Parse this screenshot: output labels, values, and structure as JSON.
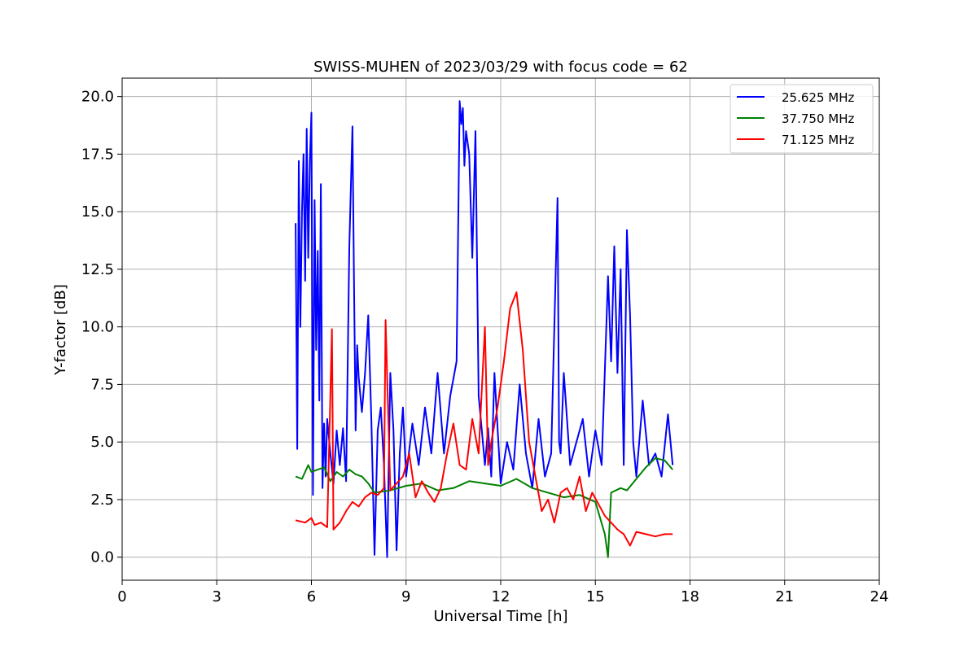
{
  "chart_data": {
    "type": "line",
    "title": "SWISS-MUHEN of 2023/03/29 with focus code = 62",
    "xlabel": "Universal Time [h]",
    "ylabel": "Y-factor [dB]",
    "xlim": [
      0,
      24
    ],
    "ylim": [
      -1,
      20.8
    ],
    "xticks": [
      0,
      3,
      6,
      9,
      12,
      15,
      18,
      21,
      24
    ],
    "xtick_labels": [
      "0",
      "3",
      "6",
      "9",
      "12",
      "15",
      "18",
      "21",
      "24"
    ],
    "yticks": [
      0,
      2.5,
      5,
      7.5,
      10,
      12.5,
      15,
      17.5,
      20
    ],
    "ytick_labels": [
      "0.0",
      "2.5",
      "5.0",
      "7.5",
      "10.0",
      "12.5",
      "15.0",
      "17.5",
      "20.0"
    ],
    "grid": true,
    "legend_position": "top-right",
    "series": [
      {
        "name": "25.625 MHz",
        "color": "#0000ff",
        "x": [
          5.5,
          5.55,
          5.6,
          5.65,
          5.7,
          5.75,
          5.8,
          5.85,
          5.9,
          5.95,
          6.0,
          6.05,
          6.1,
          6.15,
          6.2,
          6.25,
          6.3,
          6.35,
          6.4,
          6.45,
          6.5,
          6.6,
          6.7,
          6.8,
          6.9,
          7.0,
          7.1,
          7.2,
          7.3,
          7.35,
          7.4,
          7.45,
          7.5,
          7.6,
          7.7,
          7.8,
          7.9,
          8.0,
          8.1,
          8.2,
          8.3,
          8.4,
          8.5,
          8.6,
          8.7,
          8.8,
          8.9,
          9.0,
          9.2,
          9.4,
          9.6,
          9.8,
          10.0,
          10.2,
          10.4,
          10.6,
          10.7,
          10.75,
          10.8,
          10.85,
          10.9,
          11.0,
          11.1,
          11.2,
          11.3,
          11.4,
          11.5,
          11.6,
          11.7,
          11.8,
          12.0,
          12.2,
          12.4,
          12.6,
          12.8,
          13.0,
          13.2,
          13.4,
          13.6,
          13.8,
          13.85,
          13.9,
          14.0,
          14.2,
          14.4,
          14.6,
          14.8,
          15.0,
          15.2,
          15.4,
          15.5,
          15.6,
          15.7,
          15.8,
          15.9,
          16.0,
          16.1,
          16.2,
          16.3,
          16.5,
          16.7,
          16.9,
          17.1,
          17.3,
          17.45
        ],
        "y": [
          14.5,
          4.7,
          17.2,
          10.0,
          15.0,
          17.5,
          12.0,
          18.6,
          13.0,
          17.2,
          19.3,
          2.7,
          15.5,
          9.0,
          13.3,
          6.8,
          16.2,
          3.0,
          5.8,
          3.5,
          6.0,
          4.5,
          3.2,
          5.5,
          4.0,
          5.6,
          3.3,
          13.4,
          18.7,
          12.0,
          5.5,
          9.2,
          7.8,
          6.3,
          8.0,
          10.5,
          6.0,
          0.1,
          5.5,
          6.5,
          4.0,
          0.0,
          8.0,
          5.5,
          0.3,
          4.5,
          6.5,
          3.5,
          5.8,
          4.0,
          6.5,
          4.5,
          8.0,
          4.5,
          7.0,
          8.5,
          19.8,
          18.8,
          19.5,
          17.0,
          18.5,
          17.5,
          13.0,
          18.5,
          7.0,
          5.5,
          4.0,
          5.6,
          3.5,
          8.0,
          3.2,
          5.0,
          3.8,
          7.5,
          4.5,
          3.0,
          6.0,
          3.5,
          4.5,
          15.6,
          5.0,
          4.5,
          8.0,
          4.0,
          5.0,
          6.0,
          3.5,
          5.5,
          4.0,
          12.2,
          8.5,
          13.5,
          8.0,
          12.5,
          4.0,
          14.2,
          10.5,
          5.0,
          3.5,
          6.8,
          4.0,
          4.5,
          3.5,
          6.2,
          4.0
        ]
      },
      {
        "name": "37.750 MHz",
        "color": "#008000",
        "x": [
          5.5,
          5.7,
          5.9,
          6.0,
          6.2,
          6.4,
          6.6,
          6.8,
          7.0,
          7.2,
          7.4,
          7.6,
          7.8,
          8.0,
          8.5,
          9.0,
          9.5,
          10.0,
          10.5,
          11.0,
          11.5,
          12.0,
          12.5,
          13.0,
          13.5,
          14.0,
          14.5,
          15.0,
          15.3,
          15.4,
          15.5,
          15.8,
          16.0,
          16.3,
          16.6,
          16.9,
          17.2,
          17.45
        ],
        "y": [
          3.5,
          3.4,
          4.0,
          3.7,
          3.8,
          3.9,
          3.3,
          3.7,
          3.5,
          3.8,
          3.6,
          3.5,
          3.2,
          2.8,
          2.9,
          3.1,
          3.2,
          2.9,
          3.0,
          3.3,
          3.2,
          3.1,
          3.4,
          3.0,
          2.8,
          2.6,
          2.7,
          2.4,
          1.0,
          0.0,
          2.8,
          3.0,
          2.9,
          3.4,
          3.9,
          4.3,
          4.2,
          3.8
        ]
      },
      {
        "name": "71.125 MHz",
        "color": "#ff0000",
        "x": [
          5.5,
          5.8,
          6.0,
          6.1,
          6.3,
          6.5,
          6.65,
          6.7,
          6.9,
          7.1,
          7.3,
          7.5,
          7.7,
          7.9,
          8.1,
          8.3,
          8.35,
          8.5,
          8.7,
          8.9,
          9.1,
          9.3,
          9.5,
          9.7,
          9.9,
          10.1,
          10.3,
          10.5,
          10.7,
          10.9,
          11.1,
          11.3,
          11.5,
          11.6,
          11.7,
          11.9,
          12.1,
          12.3,
          12.5,
          12.7,
          12.9,
          13.1,
          13.3,
          13.5,
          13.7,
          13.9,
          14.1,
          14.3,
          14.5,
          14.7,
          14.9,
          15.1,
          15.3,
          15.5,
          15.7,
          15.9,
          16.1,
          16.3,
          16.6,
          16.9,
          17.2,
          17.45
        ],
        "y": [
          1.6,
          1.5,
          1.7,
          1.4,
          1.5,
          1.3,
          9.9,
          1.2,
          1.5,
          2.0,
          2.4,
          2.2,
          2.6,
          2.8,
          2.7,
          3.0,
          10.3,
          2.9,
          3.2,
          3.5,
          4.5,
          2.6,
          3.3,
          2.8,
          2.4,
          3.0,
          4.5,
          5.8,
          4.0,
          3.8,
          6.0,
          4.5,
          10.0,
          4.0,
          5.0,
          6.5,
          8.5,
          10.8,
          11.5,
          9.0,
          5.0,
          3.5,
          2.0,
          2.5,
          1.5,
          2.8,
          3.0,
          2.5,
          3.5,
          2.0,
          2.8,
          2.3,
          1.8,
          1.5,
          1.2,
          1.0,
          0.5,
          1.1,
          1.0,
          0.9,
          1.0,
          1.0
        ]
      }
    ]
  }
}
